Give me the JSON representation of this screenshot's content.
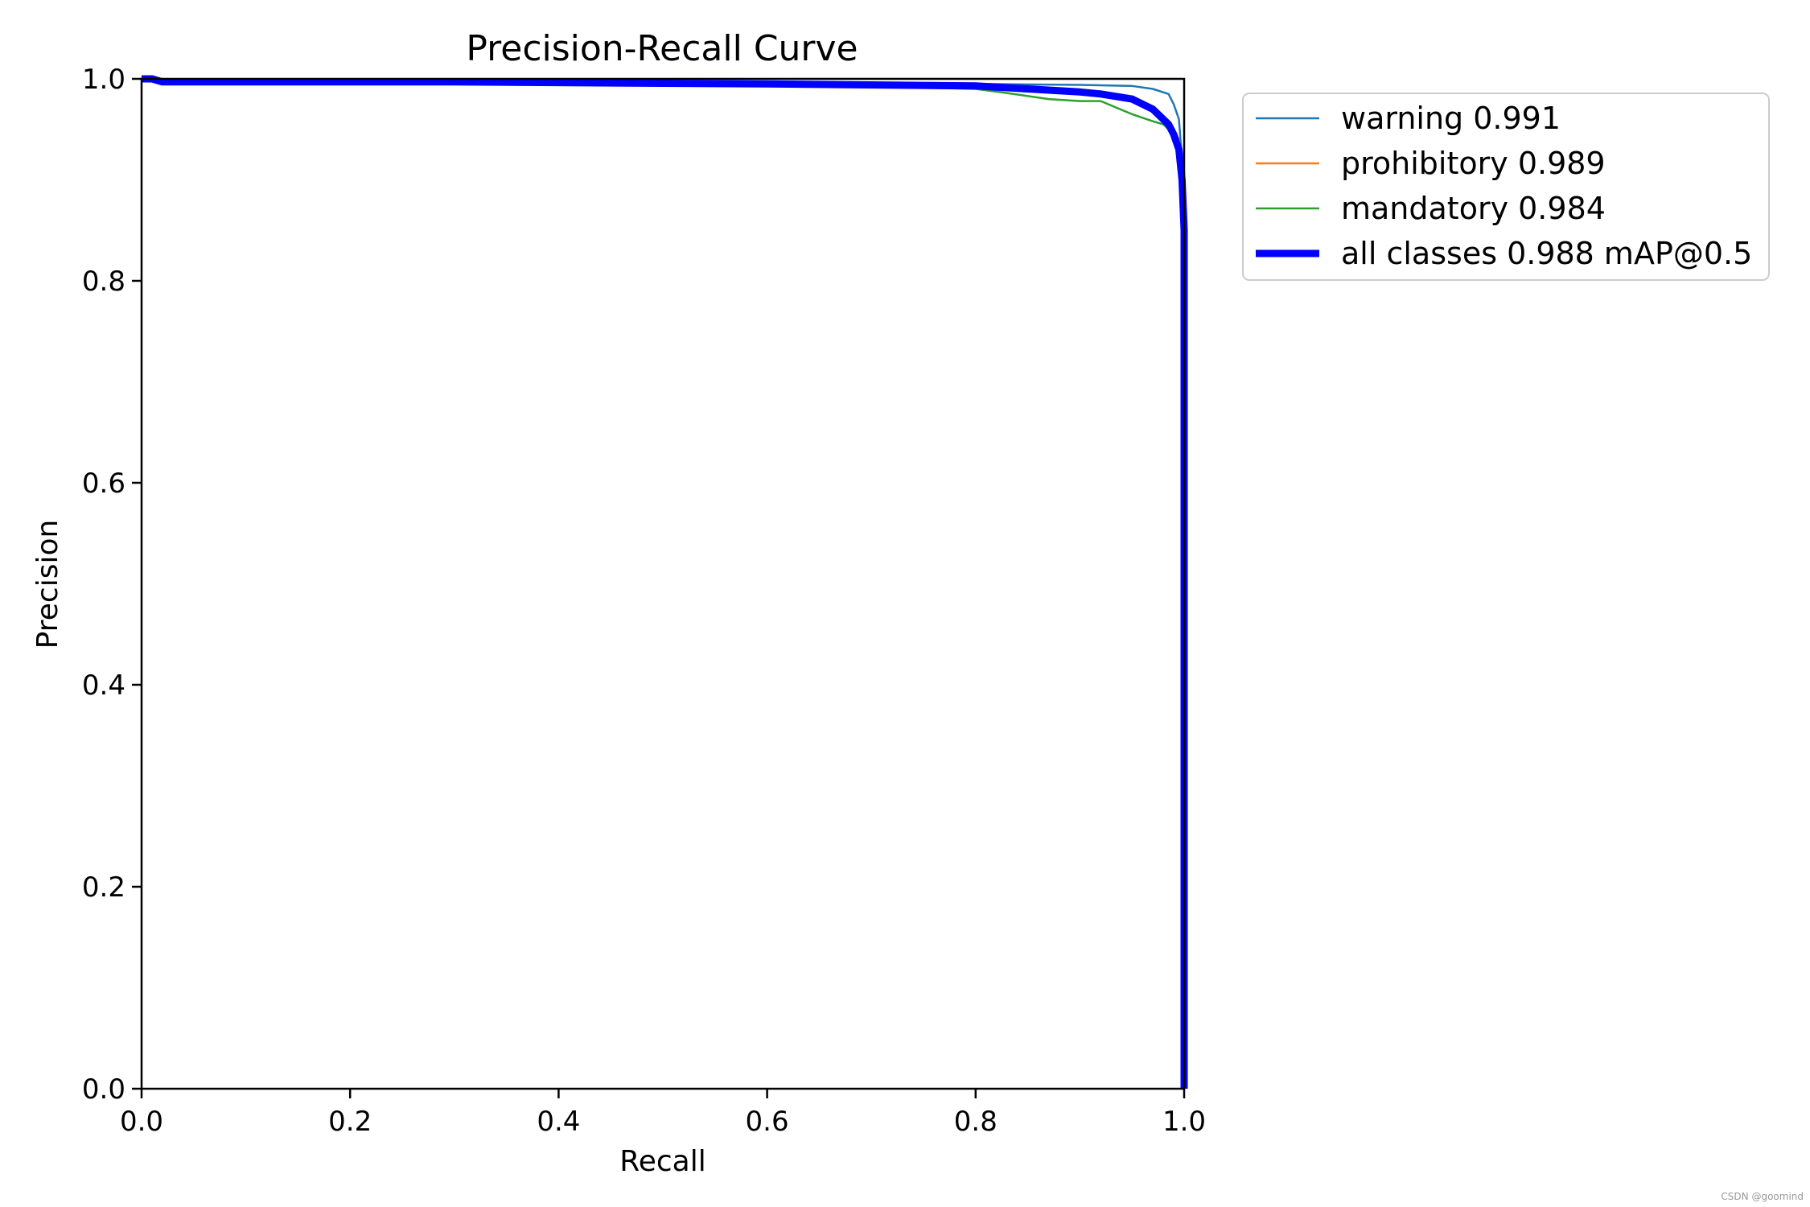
{
  "chart_data": {
    "type": "line",
    "title": "Precision-Recall Curve",
    "xlabel": "Recall",
    "ylabel": "Precision",
    "xlim": [
      0.0,
      1.0
    ],
    "ylim": [
      0.0,
      1.0
    ],
    "xticks": [
      "0.0",
      "0.2",
      "0.4",
      "0.6",
      "0.8",
      "1.0"
    ],
    "yticks": [
      "0.0",
      "0.2",
      "0.4",
      "0.6",
      "0.8",
      "1.0"
    ],
    "grid": false,
    "legend_position": "outside-top-right",
    "series": [
      {
        "name": "warning 0.991",
        "color": "#1f77b4",
        "line_width": "thin",
        "x": [
          0.0,
          0.01,
          0.02,
          0.3,
          0.6,
          0.8,
          0.9,
          0.95,
          0.97,
          0.985,
          0.99,
          0.995,
          0.998,
          1.0,
          1.0
        ],
        "y": [
          1.0,
          1.0,
          0.997,
          0.997,
          0.996,
          0.995,
          0.994,
          0.993,
          0.99,
          0.985,
          0.975,
          0.96,
          0.92,
          0.85,
          0.0
        ]
      },
      {
        "name": "prohibitory 0.989",
        "color": "#ff7f0e",
        "line_width": "thin",
        "x": [
          0.0,
          0.01,
          0.02,
          0.3,
          0.6,
          0.8,
          0.85,
          0.9,
          0.93,
          0.96,
          0.98,
          0.99,
          0.995,
          0.998,
          1.0,
          1.0
        ],
        "y": [
          1.0,
          1.0,
          0.997,
          0.997,
          0.995,
          0.993,
          0.99,
          0.987,
          0.983,
          0.975,
          0.962,
          0.95,
          0.94,
          0.92,
          0.85,
          0.0
        ]
      },
      {
        "name": "mandatory 0.984",
        "color": "#2ca02c",
        "line_width": "thin",
        "x": [
          0.0,
          0.01,
          0.02,
          0.3,
          0.6,
          0.8,
          0.83,
          0.87,
          0.9,
          0.92,
          0.95,
          0.97,
          0.98,
          0.99,
          0.995,
          0.998,
          1.0,
          1.0
        ],
        "y": [
          1.0,
          1.0,
          0.997,
          0.997,
          0.995,
          0.99,
          0.986,
          0.98,
          0.978,
          0.978,
          0.965,
          0.958,
          0.955,
          0.945,
          0.935,
          0.91,
          0.85,
          0.0
        ]
      },
      {
        "name": "all classes 0.988 mAP@0.5",
        "color": "#0000ff",
        "line_width": "thick",
        "x": [
          0.0,
          0.01,
          0.02,
          0.3,
          0.6,
          0.8,
          0.85,
          0.9,
          0.92,
          0.95,
          0.97,
          0.985,
          0.99,
          0.995,
          0.998,
          1.0,
          1.0
        ],
        "y": [
          1.0,
          1.0,
          0.997,
          0.997,
          0.995,
          0.993,
          0.99,
          0.987,
          0.985,
          0.98,
          0.97,
          0.955,
          0.945,
          0.93,
          0.9,
          0.85,
          0.0
        ]
      }
    ]
  },
  "watermark": "CSDN @goomind"
}
